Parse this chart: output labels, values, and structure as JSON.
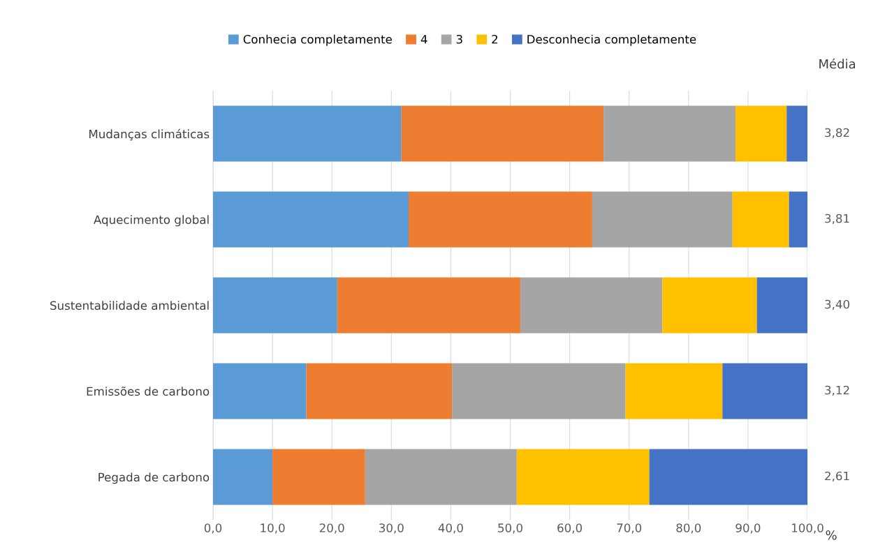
{
  "chart_data": {
    "type": "bar",
    "orientation": "horizontal",
    "stacked": true,
    "categories": [
      "Mudanças climáticas",
      "Aquecimento global",
      "Sustentabilidade ambiental",
      "Emissões de carbono",
      "Pegada de carbono"
    ],
    "series": [
      {
        "name": "Conhecia completamente",
        "color": "#5b9bd5",
        "values": [
          31.7,
          32.9,
          20.9,
          15.7,
          10.0
        ]
      },
      {
        "name": "4",
        "color": "#ed7d31",
        "values": [
          34.0,
          30.9,
          30.8,
          24.5,
          15.6
        ]
      },
      {
        "name": "3",
        "color": "#a5a5a5",
        "values": [
          22.2,
          23.6,
          23.9,
          29.2,
          25.5
        ]
      },
      {
        "name": "2",
        "color": "#ffc000",
        "values": [
          8.6,
          9.5,
          15.9,
          16.3,
          22.3
        ]
      },
      {
        "name": "Desconhecia completamente",
        "color": "#4472c4",
        "values": [
          3.5,
          3.1,
          8.5,
          14.3,
          26.6
        ]
      }
    ],
    "xlim": [
      0,
      100
    ],
    "xticks": [
      {
        "value": 0,
        "label": "0,0"
      },
      {
        "value": 10,
        "label": "10,0"
      },
      {
        "value": 20,
        "label": "20,0"
      },
      {
        "value": 30,
        "label": "30,0"
      },
      {
        "value": 40,
        "label": "40,0"
      },
      {
        "value": 50,
        "label": "50,0"
      },
      {
        "value": 60,
        "label": "60,0"
      },
      {
        "value": 70,
        "label": "70,0"
      },
      {
        "value": 80,
        "label": "80,0"
      },
      {
        "value": 90,
        "label": "90,0"
      },
      {
        "value": 100,
        "label": "100,0"
      }
    ],
    "xlabel": "%",
    "y2label": "Média",
    "annotations": [
      "3,82",
      "3,81",
      "3,40",
      "3,12",
      "2,61"
    ],
    "grid": "x",
    "legend": "top"
  }
}
